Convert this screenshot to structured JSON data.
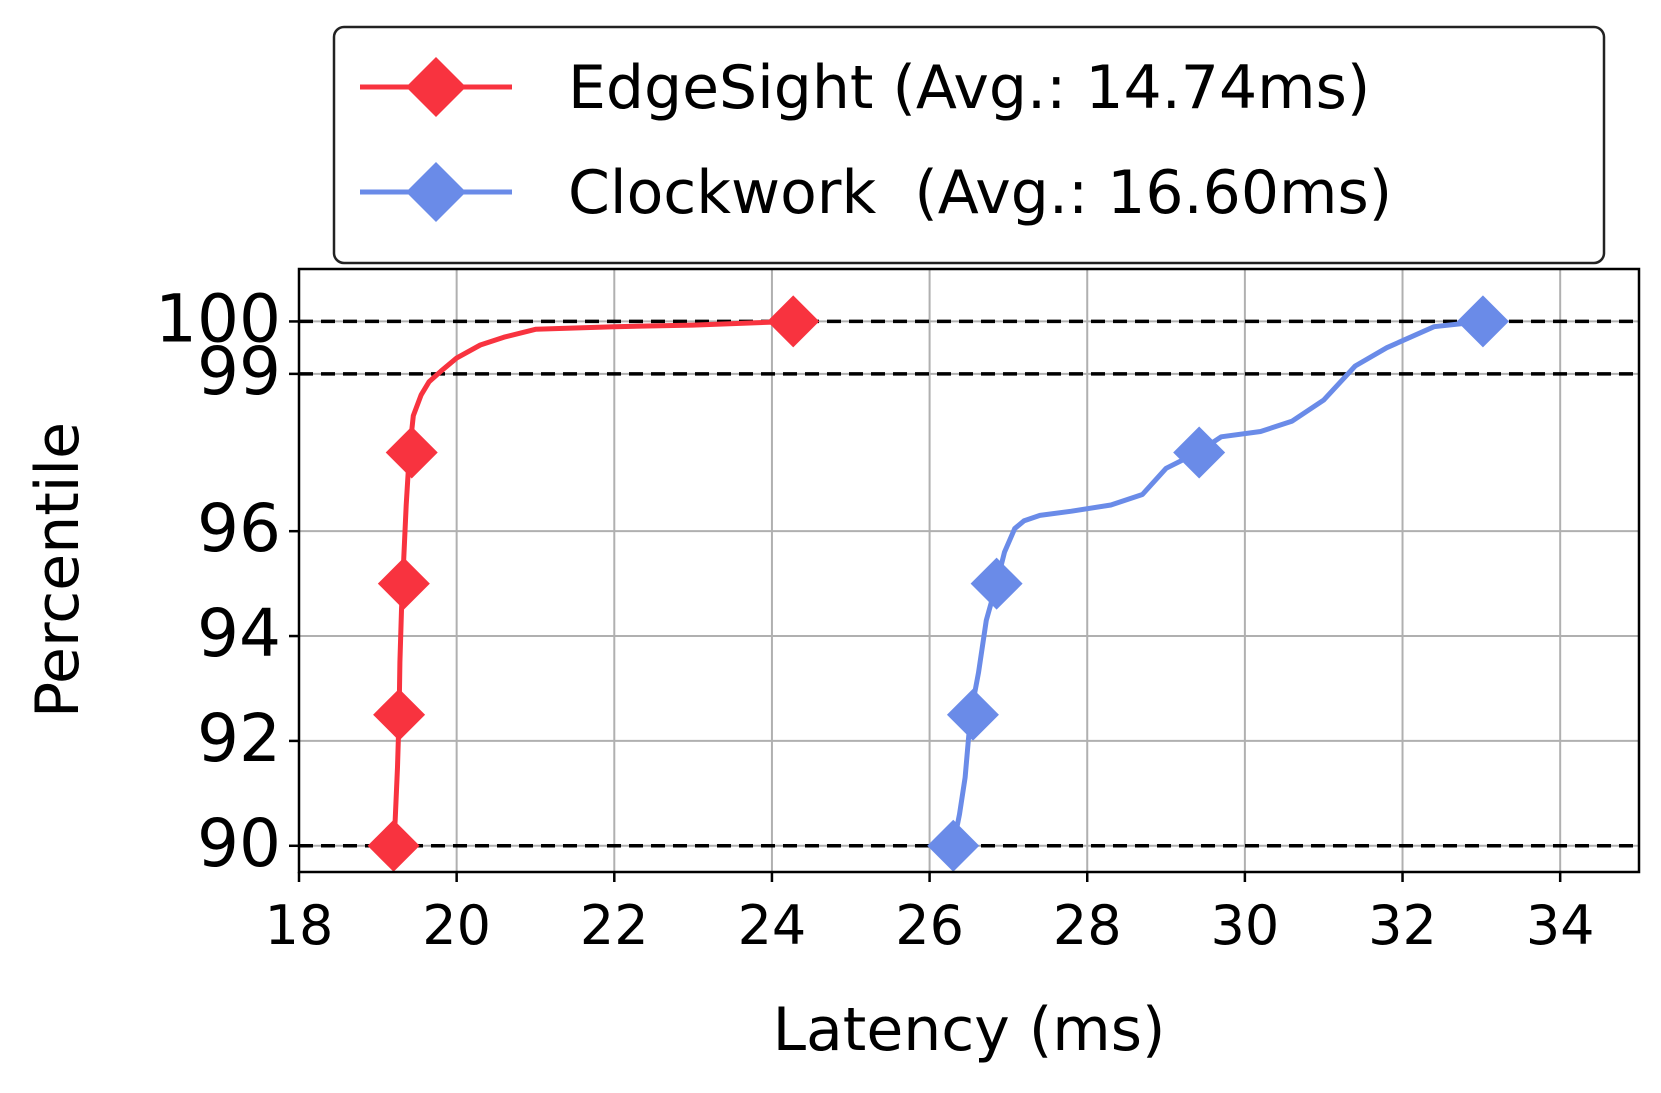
{
  "chart_data": {
    "type": "line",
    "xlabel": "Latency (ms)",
    "ylabel": "Percentile",
    "xlim": [
      18,
      35
    ],
    "ylim": [
      89.5,
      101
    ],
    "xticks": [
      18,
      20,
      22,
      24,
      26,
      28,
      30,
      32,
      34
    ],
    "yticks": [
      90,
      92,
      94,
      96,
      99,
      100
    ],
    "grid": true,
    "legend_position": "top",
    "reference_lines": [
      90,
      99,
      100
    ],
    "reference_line_color": "#000000",
    "series": [
      {
        "name": "EdgeSight (Avg.: 14.74ms)",
        "color": "#f8333f",
        "marker": "diamond",
        "points": [
          [
            19.2,
            90.0
          ],
          [
            19.22,
            90.5
          ],
          [
            19.25,
            91.5
          ],
          [
            19.27,
            92.5
          ],
          [
            19.28,
            93.5
          ],
          [
            19.3,
            94.5
          ],
          [
            19.33,
            95.5
          ],
          [
            19.36,
            96.5
          ],
          [
            19.4,
            97.5
          ],
          [
            19.45,
            98.2
          ],
          [
            19.55,
            98.6
          ],
          [
            19.65,
            98.85
          ],
          [
            19.8,
            99.05
          ],
          [
            20.0,
            99.3
          ],
          [
            20.3,
            99.55
          ],
          [
            20.6,
            99.7
          ],
          [
            21.0,
            99.85
          ],
          [
            22.0,
            99.9
          ],
          [
            23.0,
            99.93
          ],
          [
            24.27,
            100.0
          ]
        ],
        "markers": [
          [
            19.2,
            90.0
          ],
          [
            19.27,
            92.5
          ],
          [
            19.33,
            95.0
          ],
          [
            19.43,
            97.5
          ],
          [
            24.27,
            100.0
          ]
        ]
      },
      {
        "name": "Clockwork  (Avg.: 16.60ms)",
        "color": "#6a8be8",
        "marker": "diamond",
        "points": [
          [
            26.3,
            90.0
          ],
          [
            26.38,
            90.6
          ],
          [
            26.45,
            91.3
          ],
          [
            26.52,
            92.5
          ],
          [
            26.62,
            93.3
          ],
          [
            26.72,
            94.3
          ],
          [
            26.85,
            95.0
          ],
          [
            26.95,
            95.6
          ],
          [
            27.08,
            96.05
          ],
          [
            27.2,
            96.2
          ],
          [
            27.4,
            96.3
          ],
          [
            27.8,
            96.38
          ],
          [
            28.3,
            96.5
          ],
          [
            28.7,
            96.7
          ],
          [
            29.0,
            97.2
          ],
          [
            29.4,
            97.5
          ],
          [
            29.7,
            97.8
          ],
          [
            30.2,
            97.9
          ],
          [
            30.6,
            98.1
          ],
          [
            31.0,
            98.5
          ],
          [
            31.4,
            99.15
          ],
          [
            31.8,
            99.5
          ],
          [
            32.4,
            99.9
          ],
          [
            33.02,
            100.0
          ]
        ],
        "markers": [
          [
            26.3,
            90.0
          ],
          [
            26.55,
            92.5
          ],
          [
            26.85,
            95.0
          ],
          [
            29.42,
            97.5
          ],
          [
            33.02,
            100.0
          ]
        ]
      }
    ]
  }
}
